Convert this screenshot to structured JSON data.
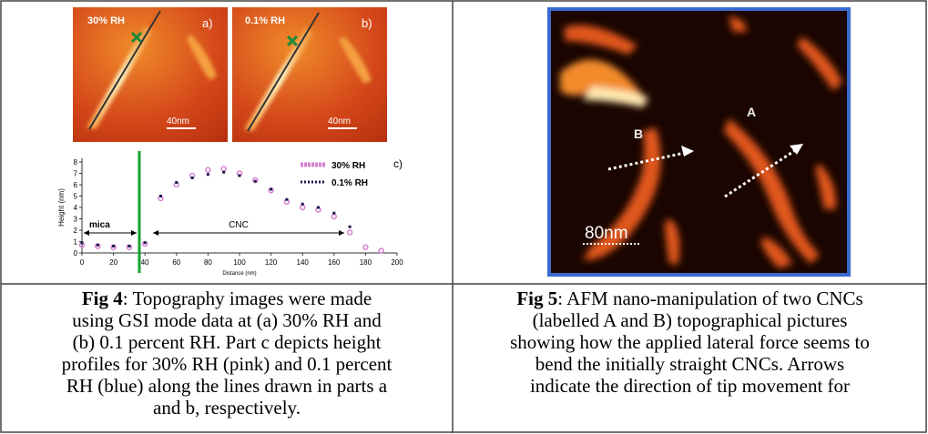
{
  "figures": [
    {
      "panels": [
        {
          "tag": "30% RH",
          "letter": "a)",
          "scale": "40nm"
        },
        {
          "tag": "0.1% RH",
          "letter": "b)",
          "scale": "40nm"
        }
      ],
      "chart_data": {
        "type": "scatter",
        "letter": "c)",
        "y_label": "Height (nm)",
        "x_label": "Distance (nm)",
        "annotations": [
          "mica",
          "CNC"
        ],
        "x": [
          0,
          10,
          20,
          30,
          40,
          50,
          60,
          70,
          80,
          90,
          100,
          110,
          120,
          130,
          140,
          150,
          160,
          170,
          180,
          190
        ],
        "series": [
          {
            "name": "30% RH",
            "color": "#d77fd0",
            "values": [
              0.7,
              0.6,
              0.5,
              0.5,
              0.8,
              4.8,
              6.0,
              6.8,
              7.3,
              7.4,
              7.0,
              6.4,
              5.5,
              4.5,
              4.0,
              3.8,
              3.2,
              1.8,
              0.5,
              0.2
            ]
          },
          {
            "name": "0.1% RH",
            "color": "#1a1a4a",
            "values": [
              0.9,
              0.7,
              0.6,
              0.6,
              0.9,
              5.0,
              6.2,
              6.6,
              6.9,
              7.1,
              6.8,
              6.3,
              5.6,
              4.7,
              4.3,
              4.0,
              3.5,
              2.3,
              null,
              null
            ]
          }
        ],
        "xlim": [
          0,
          200
        ],
        "xticks": [
          0,
          20,
          40,
          60,
          80,
          100,
          120,
          140,
          160,
          180,
          200
        ],
        "ylim": [
          0,
          8
        ],
        "yticks": [
          0,
          1,
          2,
          3,
          4,
          5,
          6,
          7,
          8
        ]
      },
      "caption": {
        "label": "Fig 4",
        "lines": [
          ": Topography images were made",
          "using GSI mode data at (a) 30% RH and",
          "(b) 0.1 percent RH. Part c depicts height",
          "profiles for 30% RH (pink) and 0.1 percent",
          "RH (blue) along the lines drawn in parts a",
          "and b, respectively."
        ]
      }
    },
    {
      "image_labels": [
        "B",
        "A"
      ],
      "scale": "80nm",
      "caption": {
        "label": "Fig 5",
        "lines": [
          ": AFM nano-manipulation of two CNCs",
          "(labelled A and B) topographical pictures",
          "showing how the applied lateral force seems to",
          "bend the initially straight CNCs. Arrows",
          "indicate the direction of tip movement for"
        ]
      }
    }
  ]
}
